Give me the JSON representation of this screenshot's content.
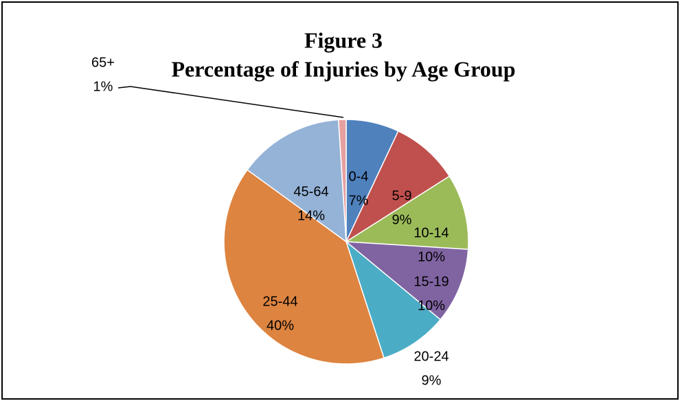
{
  "chart_data": {
    "type": "pie",
    "title": "Figure 3",
    "subtitle": "Percentage of Injuries by Age Group",
    "categories": [
      "0-4",
      "5-9",
      "10-14",
      "15-19",
      "20-24",
      "25-44",
      "45-64",
      "65+"
    ],
    "values": [
      7,
      9,
      10,
      10,
      9,
      40,
      14,
      1
    ],
    "value_labels": [
      "7%",
      "9%",
      "10%",
      "10%",
      "9%",
      "40%",
      "14%",
      "1%"
    ],
    "colors": [
      "#4f81bd",
      "#c0504d",
      "#9bbb59",
      "#8064a2",
      "#4bacc6",
      "#dd8440",
      "#95b3d7",
      "#e6a0a0"
    ]
  }
}
